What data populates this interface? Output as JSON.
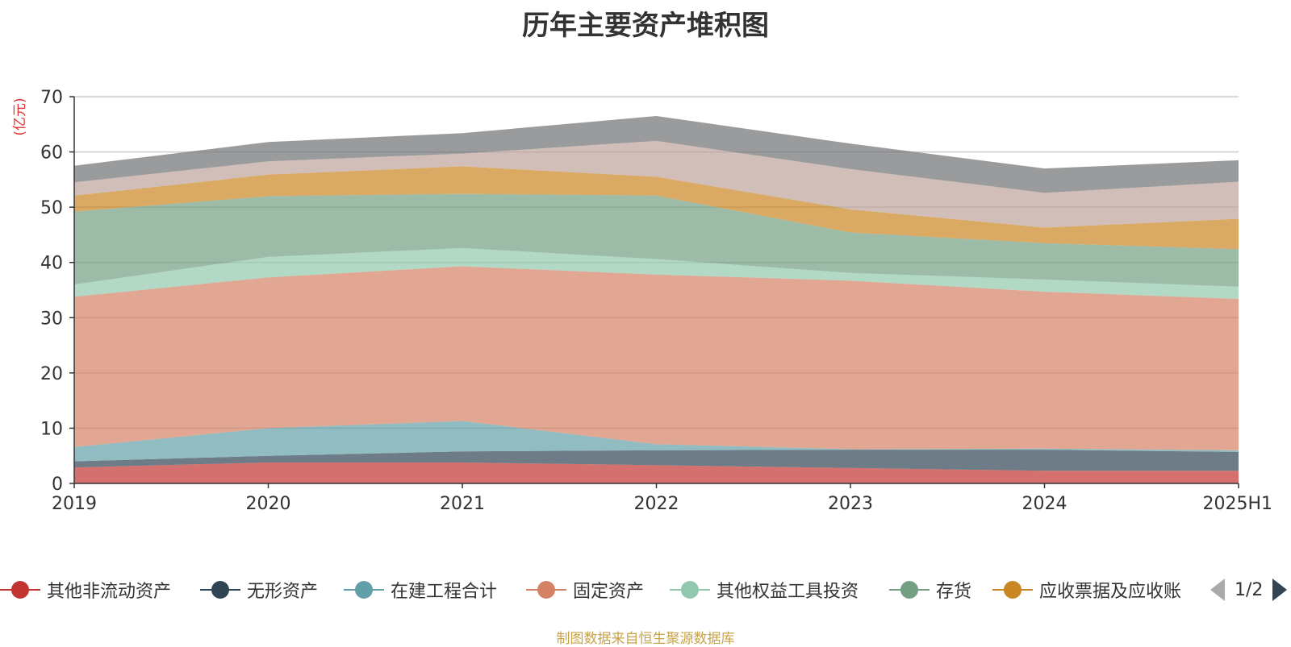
{
  "chart_data": {
    "type": "area",
    "stacked": true,
    "title": "历年主要资产堆积图",
    "unit_label": "(亿元)",
    "categories": [
      "2019",
      "2020",
      "2021",
      "2022",
      "2023",
      "2024",
      "2025H1"
    ],
    "ylim": [
      0,
      70
    ],
    "yticks": [
      0,
      10,
      20,
      30,
      40,
      50,
      60,
      70
    ],
    "grid": true,
    "legend_position": "bottom",
    "series": [
      {
        "name": "其他非流动资产",
        "color": "#c23531",
        "values": [
          2.9,
          3.8,
          3.8,
          3.3,
          2.8,
          2.3,
          2.3
        ]
      },
      {
        "name": "无形资产",
        "color": "#2f4554",
        "values": [
          1.1,
          1.2,
          2.0,
          2.7,
          3.3,
          3.8,
          3.4
        ]
      },
      {
        "name": "在建工程合计",
        "color": "#61a0a8",
        "values": [
          2.6,
          5.0,
          5.5,
          1.1,
          0.1,
          0.2,
          0.3
        ]
      },
      {
        "name": "固定资产",
        "color": "#d48265",
        "values": [
          27.2,
          27.3,
          28.0,
          30.7,
          30.5,
          28.4,
          27.4
        ]
      },
      {
        "name": "其他权益工具投资",
        "color": "#91c7ae",
        "values": [
          2.2,
          3.7,
          3.3,
          2.8,
          1.4,
          2.2,
          2.2
        ]
      },
      {
        "name": "存货",
        "color": "#749f83",
        "values": [
          13.2,
          11.0,
          9.8,
          11.5,
          7.3,
          6.6,
          6.8
        ]
      },
      {
        "name": "应收票据及应收账",
        "color": "#ca8622",
        "values": [
          2.9,
          3.9,
          5.0,
          3.4,
          4.2,
          2.8,
          5.5
        ]
      },
      {
        "name": "",
        "color": "#bda29a",
        "values": [
          2.4,
          2.4,
          2.3,
          6.5,
          7.3,
          6.3,
          6.7
        ]
      },
      {
        "name": "",
        "color": "#6e7074",
        "values": [
          3.0,
          3.5,
          3.7,
          4.5,
          4.6,
          4.4,
          3.9
        ]
      }
    ]
  },
  "legend": {
    "items": [
      "其他非流动资产",
      "无形资产",
      "在建工程合计",
      "固定资产",
      "其他权益工具投资",
      "存货",
      "应收票据及应收账"
    ],
    "page": "1/2"
  },
  "source": "制图数据来自恒生聚源数据库"
}
